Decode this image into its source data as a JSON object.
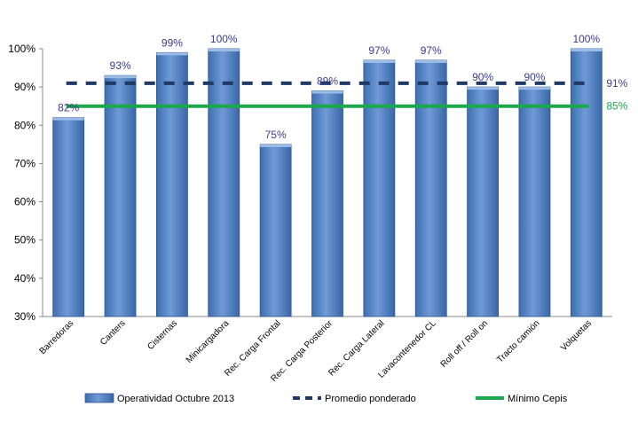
{
  "chart_data": {
    "type": "bar",
    "categories": [
      "Barredoras",
      "Canters",
      "Cisternas",
      "Minicargadora",
      "Rec. Carga Frontal",
      "Rec. Carga Posterior",
      "Rec. Carga Lateral",
      "Lavacontenedor CL",
      "Roll off / Roll on",
      "Tracto camión",
      "Volquetas"
    ],
    "series": [
      {
        "name": "Operatividad Octubre 2013",
        "values": [
          82,
          93,
          99,
          100,
          75,
          89,
          97,
          97,
          90,
          90,
          100
        ],
        "labels": [
          "82%",
          "93%",
          "99%",
          "100%",
          "75%",
          "89%",
          "97%",
          "97%",
          "90%",
          "90%",
          "100%"
        ]
      }
    ],
    "lines": [
      {
        "name": "Promedio ponderado",
        "value": 91,
        "label": "91%",
        "color": "#1f3864",
        "style": "dashed"
      },
      {
        "name": "Mínimo Cepis",
        "value": 85,
        "label": "85%",
        "color": "#1aa84a",
        "style": "solid"
      }
    ],
    "yticks": [
      "30%",
      "40%",
      "50%",
      "60%",
      "70%",
      "80%",
      "90%",
      "100%"
    ],
    "ylim": [
      30,
      100
    ],
    "bar_color": "#4f81bd",
    "legend_position": "bottom",
    "grid": false
  }
}
